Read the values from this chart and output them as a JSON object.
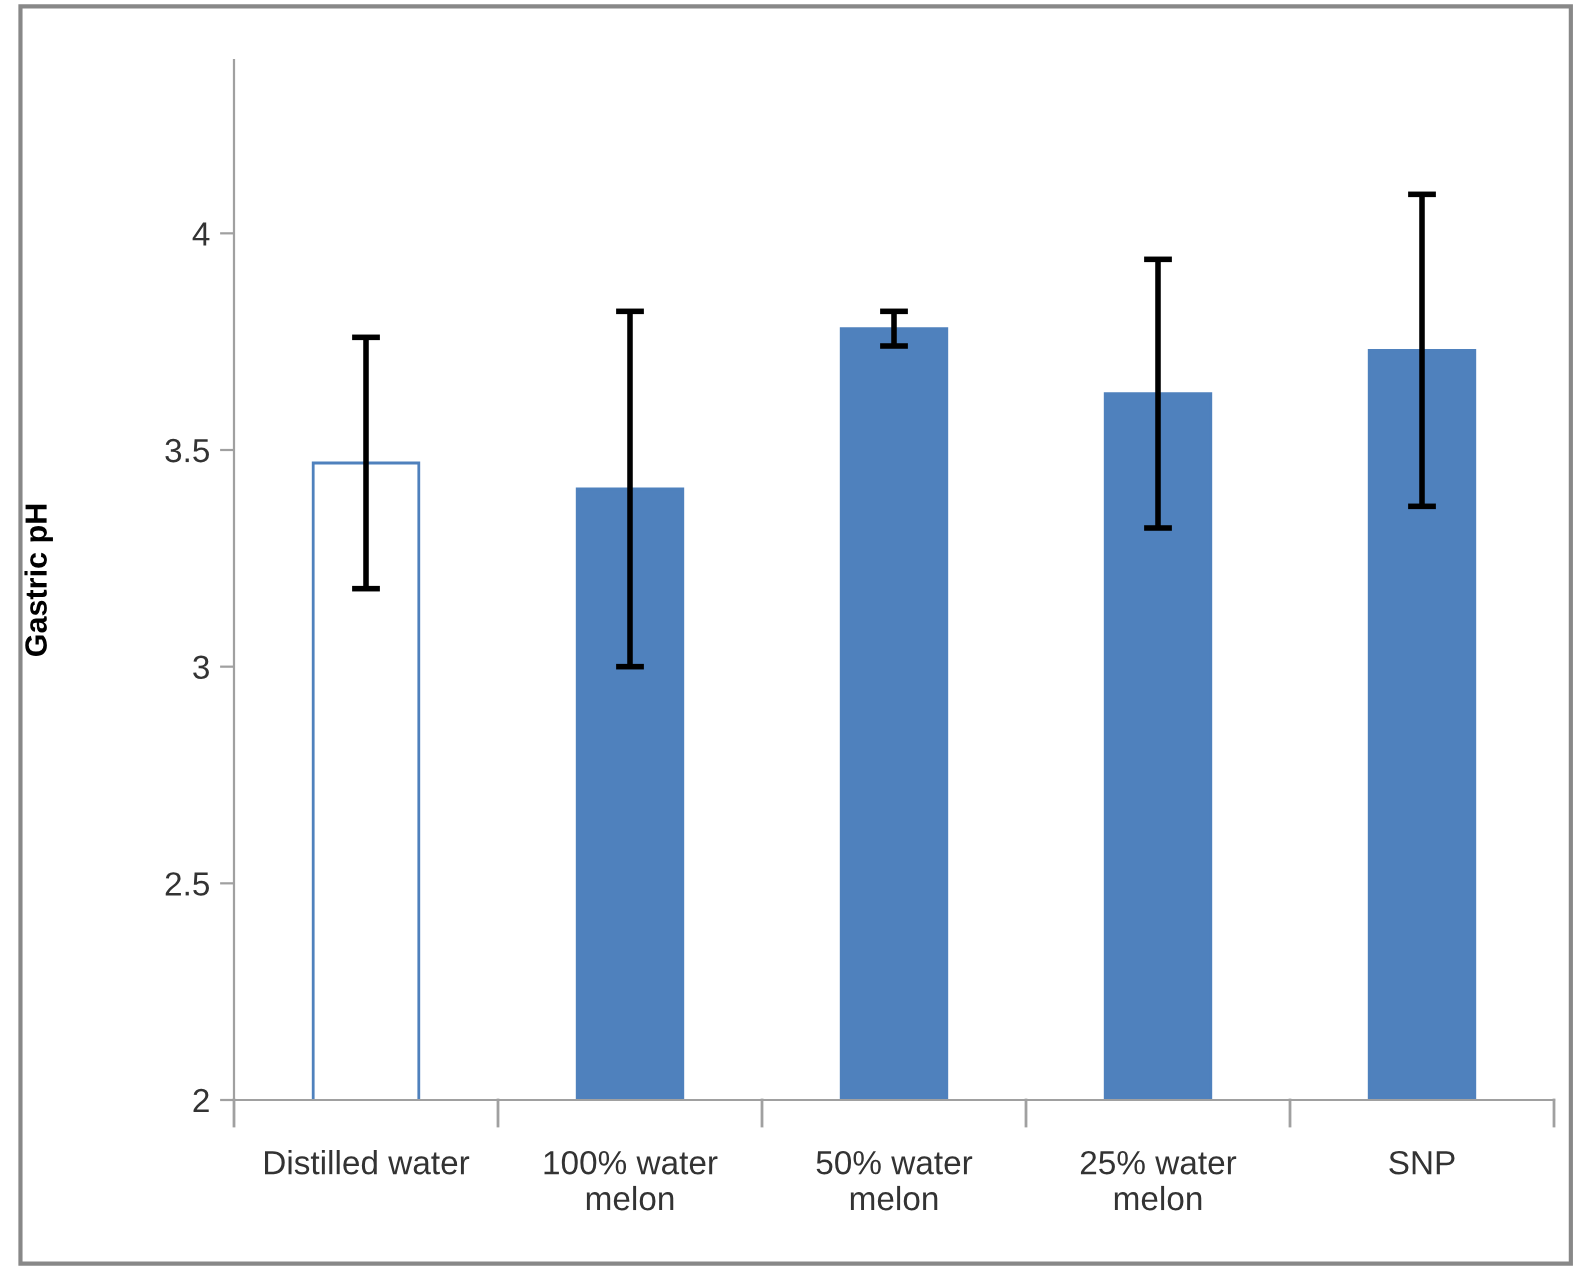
{
  "chart_data": {
    "type": "bar",
    "ylabel": "Gastric pH",
    "categories": [
      "Distilled water",
      "100% water\nmelon",
      "50% water\nmelon",
      "25% water\nmelon",
      "SNP"
    ],
    "series": [
      {
        "color": "#4f81bd",
        "colors": [
          "#ffffff",
          "#4f81bd",
          "#4f81bd",
          "#4f81bd",
          "#4f81bd"
        ],
        "values": [
          3.47,
          3.41,
          3.78,
          3.63,
          3.73
        ],
        "errors": [
          0.29,
          0.41,
          0.04,
          0.31,
          0.36
        ]
      }
    ],
    "ylim": [
      2,
      4.4
    ],
    "yticks": [
      2,
      2.5,
      3,
      3.5,
      4
    ],
    "grid": false,
    "legend": false
  }
}
